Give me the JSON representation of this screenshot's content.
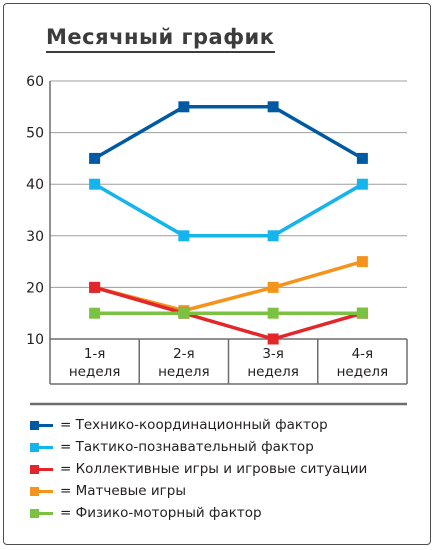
{
  "chart_data": {
    "type": "line",
    "title": "Месячный график",
    "categories": [
      "1-я неделя",
      "2-я неделя",
      "3-я неделя",
      "4-я неделя"
    ],
    "category_lines": [
      [
        "1-я",
        "неделя"
      ],
      [
        "2-я",
        "неделя"
      ],
      [
        "3-я",
        "неделя"
      ],
      [
        "4-я",
        "неделя"
      ]
    ],
    "ylim": [
      10,
      60
    ],
    "yticks": [
      10,
      20,
      30,
      40,
      50,
      60
    ],
    "grid": true,
    "legend_position": "bottom",
    "series": [
      {
        "name": "= Технико-координационный фактор",
        "color": "#005aa3",
        "values": [
          45,
          55,
          55,
          45
        ]
      },
      {
        "name": "= Тактико-познавательный фактор",
        "color": "#14b4ec",
        "values": [
          40,
          30,
          30,
          40
        ]
      },
      {
        "name": "= Коллективные игры и игровые ситуации",
        "color": "#e3262b",
        "values": [
          20,
          15,
          10,
          15
        ]
      },
      {
        "name": "= Матчевые игры",
        "color": "#f5941d",
        "values": [
          20,
          15.5,
          20,
          25
        ]
      },
      {
        "name": "= Физико-моторный фактор",
        "color": "#7cc242",
        "values": [
          15,
          15,
          15,
          15
        ]
      }
    ]
  }
}
